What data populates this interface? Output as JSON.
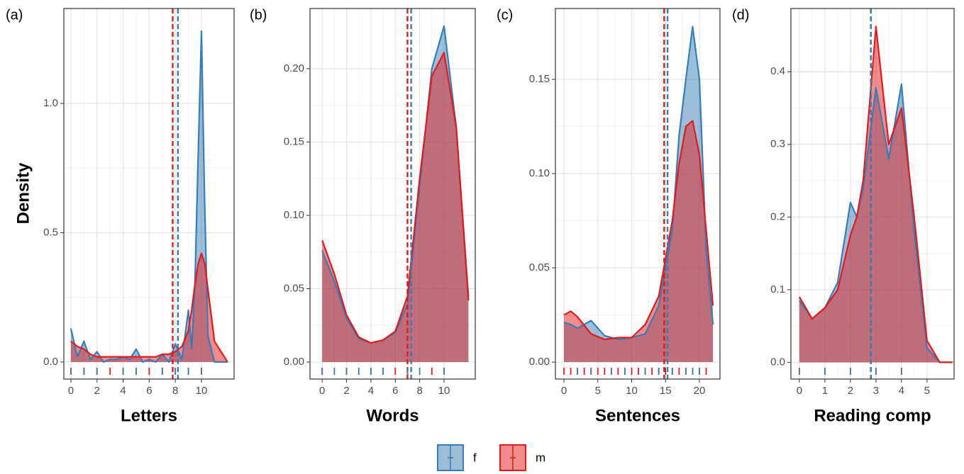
{
  "chart_data": [
    {
      "type": "density",
      "panel": "(a)",
      "x_label": "Letters",
      "y_label": "Density",
      "xlim": [
        -0.54,
        12.5
      ],
      "ylim": [
        -0.066,
        1.367
      ],
      "xticks": [
        0,
        2,
        4,
        6,
        8,
        10
      ],
      "yticks": [
        {
          "value": 0,
          "label": "0.0"
        },
        0.5,
        {
          "value": 1,
          "label": "1.0"
        }
      ],
      "grid": true,
      "x": [
        0,
        0.5,
        1,
        1.5,
        2,
        2.5,
        3,
        3.5,
        4,
        4.5,
        5,
        5.5,
        6,
        6.5,
        7,
        7.5,
        8,
        8.5,
        9,
        9.25,
        9.5,
        9.75,
        10,
        10.25,
        10.5,
        11,
        12
      ],
      "series": [
        {
          "name": "f",
          "color": "#377eb8",
          "mean": 8.2,
          "rug": [
            0,
            1,
            2,
            4,
            5,
            7,
            8,
            9,
            10
          ],
          "values": [
            0.13,
            0.02,
            0.08,
            0.01,
            0.04,
            0,
            0.01,
            0.01,
            0.02,
            0.01,
            0.05,
            0,
            0.01,
            0,
            0.03,
            0,
            0.07,
            0.01,
            0.2,
            0.05,
            0.3,
            0.8,
            1.28,
            0.6,
            0.1,
            0,
            0
          ]
        },
        {
          "name": "m",
          "color": "#e41a1c",
          "mean": 7.8,
          "rug": [
            0,
            1,
            2,
            3,
            4,
            5,
            6,
            7,
            8,
            9,
            10
          ],
          "values": [
            0.08,
            0.06,
            0.05,
            0.03,
            0.02,
            0.02,
            0.02,
            0.02,
            0.02,
            0.02,
            0.02,
            0.02,
            0.02,
            0.02,
            0.03,
            0.03,
            0.04,
            0.06,
            0.12,
            0.2,
            0.3,
            0.38,
            0.42,
            0.38,
            0.28,
            0.08,
            0
          ]
        }
      ]
    },
    {
      "type": "density",
      "panel": "(b)",
      "x_label": "Words",
      "xlim": [
        -1,
        12.56
      ],
      "ylim": [
        -0.0116,
        0.241
      ],
      "xticks": [
        0,
        2,
        4,
        6,
        8,
        10
      ],
      "yticks": [
        {
          "value": 0,
          "label": "0.00"
        },
        0.05,
        {
          "value": 0.1,
          "label": "0.10"
        },
        0.15,
        {
          "value": 0.2,
          "label": "0.20"
        }
      ],
      "grid": true,
      "x": [
        0,
        1,
        2,
        3,
        4,
        5,
        6,
        7,
        8,
        9,
        10,
        11,
        12
      ],
      "series": [
        {
          "name": "f",
          "color": "#377eb8",
          "mean": 7.3,
          "rug": [
            0,
            1,
            2,
            3,
            4,
            5,
            7,
            8,
            10
          ],
          "values": [
            0.076,
            0.055,
            0.03,
            0.016,
            0.013,
            0.015,
            0.02,
            0.04,
            0.12,
            0.2,
            0.229,
            0.16,
            0.045
          ]
        },
        {
          "name": "m",
          "color": "#e41a1c",
          "mean": 7,
          "rug": [
            0,
            2,
            4,
            5,
            6,
            7,
            9,
            10
          ],
          "values": [
            0.083,
            0.06,
            0.032,
            0.017,
            0.013,
            0.015,
            0.021,
            0.045,
            0.125,
            0.195,
            0.211,
            0.16,
            0.042
          ]
        }
      ]
    },
    {
      "type": "density",
      "panel": "(c)",
      "x_label": "Sentences",
      "xlim": [
        -1.26,
        23.04
      ],
      "ylim": [
        -0.009,
        0.1876
      ],
      "xticks": [
        0,
        5,
        10,
        15,
        20
      ],
      "yticks": [
        {
          "value": 0,
          "label": "0.00"
        },
        0.05,
        {
          "value": 0.1,
          "label": "0.10"
        },
        0.15
      ],
      "grid": true,
      "x": [
        0,
        1,
        2,
        4,
        6,
        8,
        10,
        12,
        14,
        16,
        17,
        18,
        19,
        20,
        21,
        22
      ],
      "series": [
        {
          "name": "f",
          "color": "#377eb8",
          "mean": 15.3,
          "rug": [
            2,
            4,
            7,
            9,
            12,
            14,
            16,
            18,
            19,
            20
          ],
          "values": [
            0.021,
            0.02,
            0.018,
            0.022,
            0.014,
            0.012,
            0.013,
            0.015,
            0.03,
            0.07,
            0.12,
            0.15,
            0.178,
            0.15,
            0.06,
            0.02
          ]
        },
        {
          "name": "m",
          "color": "#e41a1c",
          "mean": 14.8,
          "rug": [
            0,
            1,
            2,
            3,
            4,
            5,
            6,
            7,
            8,
            9,
            10,
            11,
            12,
            13,
            14,
            15,
            16,
            17,
            18,
            19,
            20,
            21
          ],
          "values": [
            0.025,
            0.027,
            0.024,
            0.015,
            0.012,
            0.013,
            0.013,
            0.02,
            0.035,
            0.075,
            0.105,
            0.125,
            0.128,
            0.11,
            0.07,
            0.03
          ]
        }
      ]
    },
    {
      "type": "density",
      "panel": "(d)",
      "x_label": "Reading comp",
      "xlim": [
        -0.33,
        6.06
      ],
      "ylim": [
        -0.023,
        0.487
      ],
      "xticks": [
        0,
        1,
        2,
        3,
        4,
        5
      ],
      "yticks": [
        {
          "value": 0,
          "label": "0.0"
        },
        0.1,
        0.2,
        0.3,
        0.4
      ],
      "grid": true,
      "x": [
        0,
        0.5,
        1,
        1.5,
        2,
        2.25,
        2.5,
        3,
        3.5,
        4,
        4.5,
        5,
        5.5,
        6
      ],
      "series": [
        {
          "name": "f",
          "color": "#377eb8",
          "mean": 2.8,
          "rug": [
            0,
            1,
            2,
            3,
            4
          ],
          "values": [
            0.085,
            0.06,
            0.075,
            0.11,
            0.22,
            0.2,
            0.24,
            0.378,
            0.28,
            0.383,
            0.18,
            0.02,
            0,
            0
          ]
        },
        {
          "name": "m",
          "color": "#e41a1c",
          "mean": 2.8,
          "rug": [
            0,
            1,
            2,
            3,
            4
          ],
          "values": [
            0.09,
            0.06,
            0.075,
            0.1,
            0.175,
            0.2,
            0.25,
            0.462,
            0.3,
            0.35,
            0.2,
            0.03,
            0,
            0
          ]
        }
      ]
    }
  ]
}
